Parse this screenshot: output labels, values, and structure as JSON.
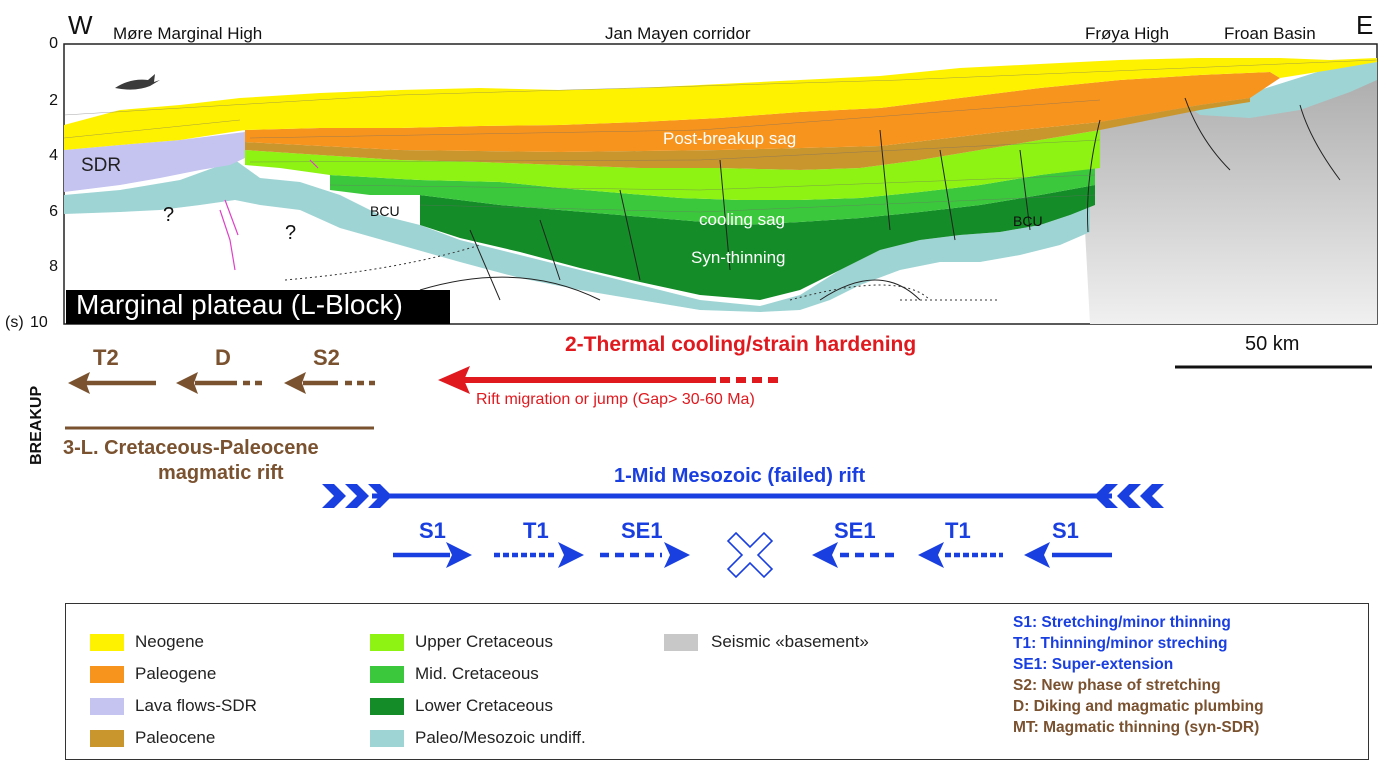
{
  "figure": {
    "west_label": "W",
    "east_label": "E",
    "regions": [
      "Møre Marginal High",
      "Jan Mayen corridor",
      "Frøya High",
      "Froan Basin"
    ],
    "depth_ticks": [
      "0",
      "2",
      "4",
      "6",
      "8",
      "10"
    ],
    "depth_unit": "(s)",
    "section_labels": {
      "sdr": "SDR",
      "q1": "?",
      "q2": "?",
      "bcu_west": "BCU",
      "bcu_east": "BCU",
      "post_breakup": "Post-breakup sag",
      "cooling": "cooling sag",
      "syn_thinning": "Syn-thinning"
    },
    "plateau_title": "Marginal plateau (L-Block)",
    "scale_bar": "50 km"
  },
  "phases": {
    "breakup": "BREAKUP",
    "thermal_title": "2-Thermal cooling/strain hardening",
    "rift_migration": "Rift migration or jump (Gap> 30-60 Ma)",
    "magmatic_line1": "3-L. Cretaceous-Paleocene",
    "magmatic_line2": "magmatic rift",
    "magmatic_arrows": [
      "T2",
      "D",
      "S2"
    ],
    "mesozoic_title": "1-Mid Mesozoic (failed) rift",
    "mesozoic_left": [
      "S1",
      "T1",
      "SE1"
    ],
    "mesozoic_right": [
      "SE1",
      "T1",
      "S1"
    ]
  },
  "legend": {
    "items": [
      {
        "label": "Neogene",
        "color": "#fff200"
      },
      {
        "label": "Paleogene",
        "color": "#f7941d"
      },
      {
        "label": "Lava flows-SDR",
        "color": "#c5c3f0"
      },
      {
        "label": "Paleocene",
        "color": "#c9962e"
      },
      {
        "label": "Upper Cretaceous",
        "color": "#8ef213"
      },
      {
        "label": "Mid. Cretaceous",
        "color": "#3cc83c"
      },
      {
        "label": "Lower Cretaceous",
        "color": "#148c28"
      },
      {
        "label": "Paleo/Mesozoic undiff.",
        "color": "#9fd4d4"
      },
      {
        "label": "Seismic «basement»",
        "color": "#c8c8c8"
      }
    ],
    "abbreviations": [
      {
        "text": "S1: Stretching/minor thinning",
        "color": "#1a3fe0"
      },
      {
        "text": "T1: Thinning/minor streching",
        "color": "#1a3fe0"
      },
      {
        "text": "SE1: Super-extension",
        "color": "#1a3fe0"
      },
      {
        "text": "S2: New phase of stretching",
        "color": "#7a5230"
      },
      {
        "text": "D: Diking and magmatic plumbing",
        "color": "#7a5230"
      },
      {
        "text": "MT: Magmatic thinning (syn-SDR)",
        "color": "#7a5230"
      }
    ]
  },
  "colors": {
    "blue": "#1a3fe0",
    "brown": "#7a5230",
    "red": "#e0191f"
  }
}
